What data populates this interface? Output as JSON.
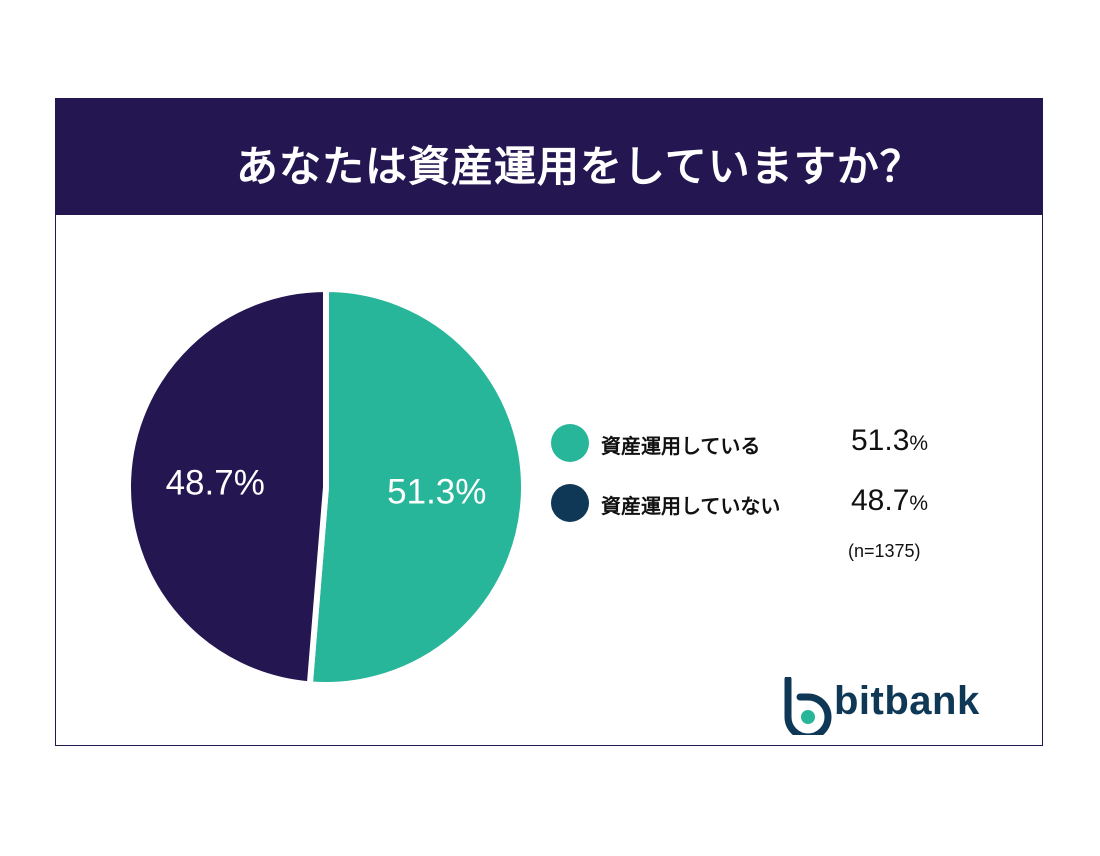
{
  "title": "あなたは資産運用をしていますか？",
  "chart_data": {
    "type": "pie",
    "title": "あなたは資産運用をしていますか？",
    "slices": [
      {
        "label": "資産運用している",
        "value": 51.3,
        "display": "51.3%",
        "color": "#27b699"
      },
      {
        "label": "資産運用していない",
        "value": 48.7,
        "display": "48.7%",
        "color": "#231651"
      }
    ],
    "legend_position": "right"
  },
  "legend": [
    {
      "label": "資産運用している",
      "value": "51.3",
      "unit": "%",
      "color": "#27b699"
    },
    {
      "label": "資産運用していない",
      "value": "48.7",
      "unit": "%",
      "color": "#0f3756"
    }
  ],
  "sample_size": "(n=1375)",
  "logo": {
    "text": "bitbank",
    "color": "#0f3756",
    "accent": "#27b699"
  },
  "colors": {
    "header": "#231651",
    "border": "#231651"
  }
}
